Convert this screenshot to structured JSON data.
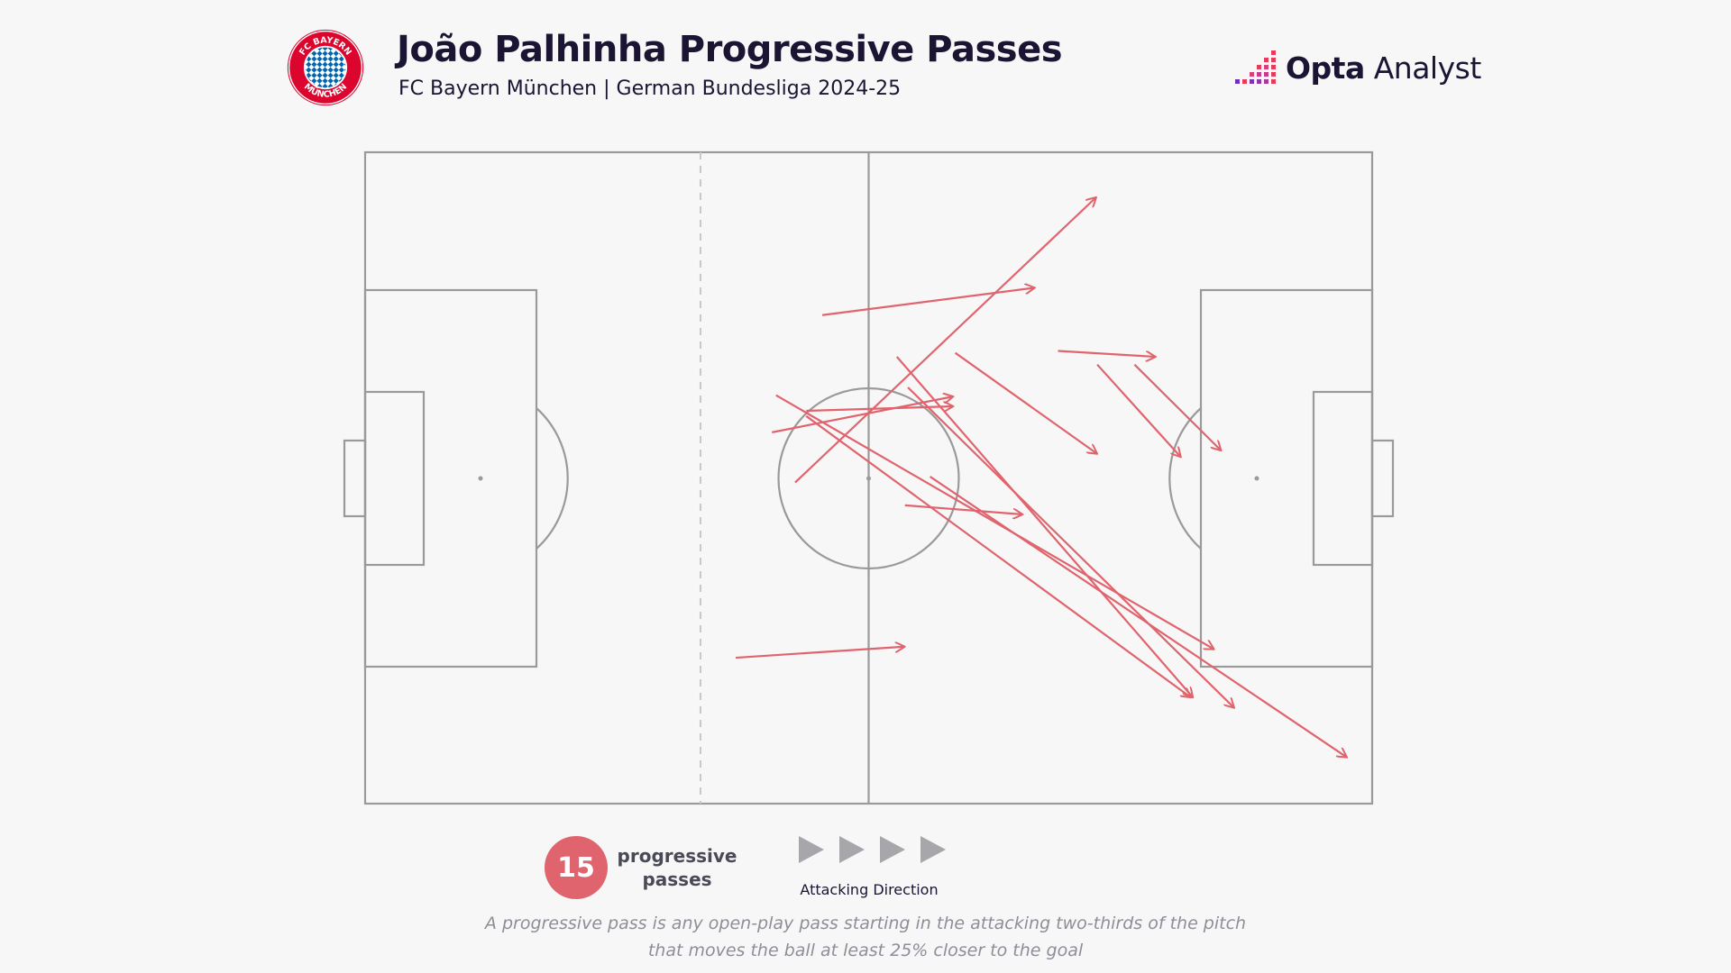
{
  "header": {
    "title": "João Palhinha Progressive Passes",
    "subtitle": "FC Bayern München | German Bundesliga 2024-25",
    "club_badge_icon": "fc-bayern-badge-icon",
    "club_badge_text": "FC BAYERN MÜNCHEN",
    "brand_icon": "opta-bars-icon",
    "brand_strong": "Opta",
    "brand_light": "Analyst"
  },
  "colors": {
    "pass_arrow": "#e0646e",
    "pitch_line": "#9a9a9a",
    "background": "#f7f7f7",
    "count_badge": "#e0646e",
    "title": "#1b1433",
    "brand_accent": "#e63c5a"
  },
  "chart_data": {
    "type": "pass_map",
    "pitch": {
      "length": 100,
      "width": 100,
      "attacking_direction": "right",
      "threshold_line_x": 33.3
    },
    "passes": [
      {
        "x1": 42.7,
        "y1": 50.7,
        "x2": 72.6,
        "y2": 6.9
      },
      {
        "x1": 45.4,
        "y1": 25.0,
        "x2": 66.5,
        "y2": 20.8
      },
      {
        "x1": 68.8,
        "y1": 30.5,
        "x2": 78.5,
        "y2": 31.4
      },
      {
        "x1": 58.6,
        "y1": 30.8,
        "x2": 72.7,
        "y2": 46.3
      },
      {
        "x1": 72.7,
        "y1": 32.6,
        "x2": 81.0,
        "y2": 46.8
      },
      {
        "x1": 76.4,
        "y1": 32.6,
        "x2": 85.0,
        "y2": 45.8
      },
      {
        "x1": 40.4,
        "y1": 43.0,
        "x2": 58.4,
        "y2": 37.5
      },
      {
        "x1": 43.8,
        "y1": 39.7,
        "x2": 58.4,
        "y2": 39.0
      },
      {
        "x1": 40.8,
        "y1": 37.3,
        "x2": 84.3,
        "y2": 76.3
      },
      {
        "x1": 52.8,
        "y1": 31.4,
        "x2": 82.2,
        "y2": 83.7
      },
      {
        "x1": 53.9,
        "y1": 36.1,
        "x2": 86.3,
        "y2": 85.3
      },
      {
        "x1": 56.1,
        "y1": 49.8,
        "x2": 97.5,
        "y2": 92.9
      },
      {
        "x1": 53.6,
        "y1": 54.2,
        "x2": 65.3,
        "y2": 55.6
      },
      {
        "x1": 43.8,
        "y1": 40.5,
        "x2": 82.0,
        "y2": 83.7
      },
      {
        "x1": 36.8,
        "y1": 77.6,
        "x2": 53.6,
        "y2": 75.9
      }
    ]
  },
  "footer": {
    "count": "15",
    "count_label_line1": "progressive",
    "count_label_line2": "passes",
    "direction_icon": "play-arrow-icon",
    "direction_label": "Attacking Direction",
    "footnote_line1": "A progressive pass is any open-play pass starting in the attacking two-thirds of the pitch",
    "footnote_line2": "that moves the ball at least 25% closer to the goal"
  }
}
